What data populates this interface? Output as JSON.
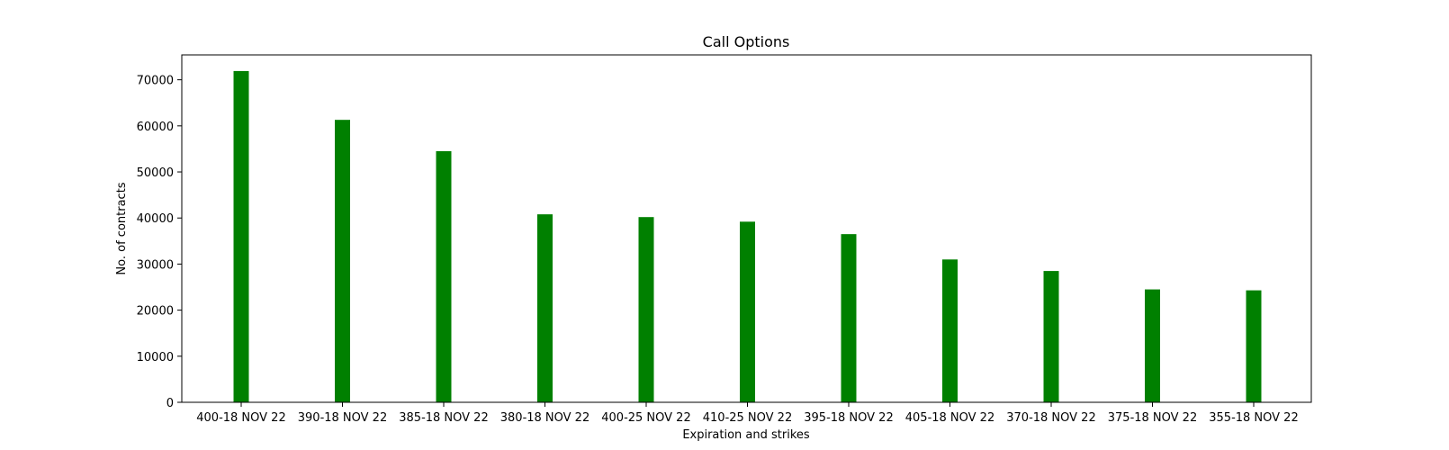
{
  "chart_data": {
    "type": "bar",
    "title": "Call Options",
    "xlabel": "Expiration and strikes",
    "ylabel": "No. of contracts",
    "categories": [
      "400-18 NOV 22",
      "390-18 NOV 22",
      "385-18 NOV 22",
      "380-18 NOV 22",
      "400-25 NOV 22",
      "410-25 NOV 22",
      "395-18 NOV 22",
      "405-18 NOV 22",
      "370-18 NOV 22",
      "375-18 NOV 22",
      "355-18 NOV 22"
    ],
    "values": [
      71900,
      61300,
      54500,
      40800,
      40200,
      39200,
      36500,
      31000,
      28500,
      24500,
      24300
    ],
    "ylim": [
      0,
      75400
    ],
    "yticks": [
      0,
      10000,
      20000,
      30000,
      40000,
      50000,
      60000,
      70000
    ],
    "bar_color": "#008000",
    "grid": false,
    "legend": "none"
  }
}
